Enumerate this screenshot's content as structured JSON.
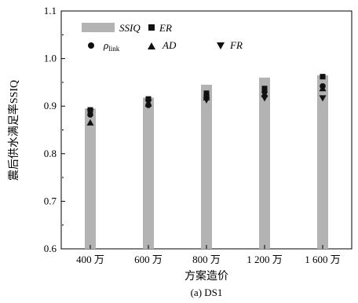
{
  "chart_data": {
    "type": "bar",
    "caption": "(a) DS1",
    "xlabel": "方案造价",
    "ylabel": "震后供水满足率SSIQ",
    "categories": [
      "400 万",
      "600 万",
      "800 万",
      "1 200 万",
      "1 600 万"
    ],
    "ylim": [
      0.6,
      1.1
    ],
    "yticks": [
      0.6,
      0.7,
      0.8,
      0.9,
      1.0,
      1.1
    ],
    "yticklabels": [
      "0.6",
      "0.7",
      "0.8",
      "0.9",
      "1.0",
      "1.1"
    ],
    "grid": false,
    "legend_position": "top-left",
    "series": [
      {
        "name": "SSIQ",
        "type": "bar",
        "color": "#b3b3b3",
        "values": [
          0.895,
          0.918,
          0.945,
          0.96,
          0.965
        ]
      },
      {
        "name": "ER",
        "type": "scatter",
        "marker": "square",
        "color": "#111111",
        "values": [
          0.892,
          0.915,
          0.927,
          0.937,
          0.962
        ]
      },
      {
        "name": "ρlink",
        "type": "scatter",
        "marker": "circle",
        "color": "#111111",
        "values": [
          0.882,
          0.902,
          0.922,
          0.93,
          0.942
        ]
      },
      {
        "name": "AD",
        "type": "scatter",
        "marker": "triangle-up",
        "color": "#111111",
        "values": [
          0.865,
          0.905,
          0.918,
          0.925,
          0.937
        ]
      },
      {
        "name": "FR",
        "type": "scatter",
        "marker": "triangle-down",
        "color": "#111111",
        "values": [
          0.888,
          0.908,
          0.913,
          0.917,
          0.917
        ]
      }
    ]
  },
  "legend": {
    "items": [
      {
        "key": "ssiq",
        "label": "SSIQ"
      },
      {
        "key": "er",
        "label": "ER"
      },
      {
        "key": "rho",
        "label": "ρ",
        "sub": "link"
      },
      {
        "key": "ad",
        "label": "AD"
      },
      {
        "key": "fr",
        "label": "FR"
      }
    ]
  }
}
